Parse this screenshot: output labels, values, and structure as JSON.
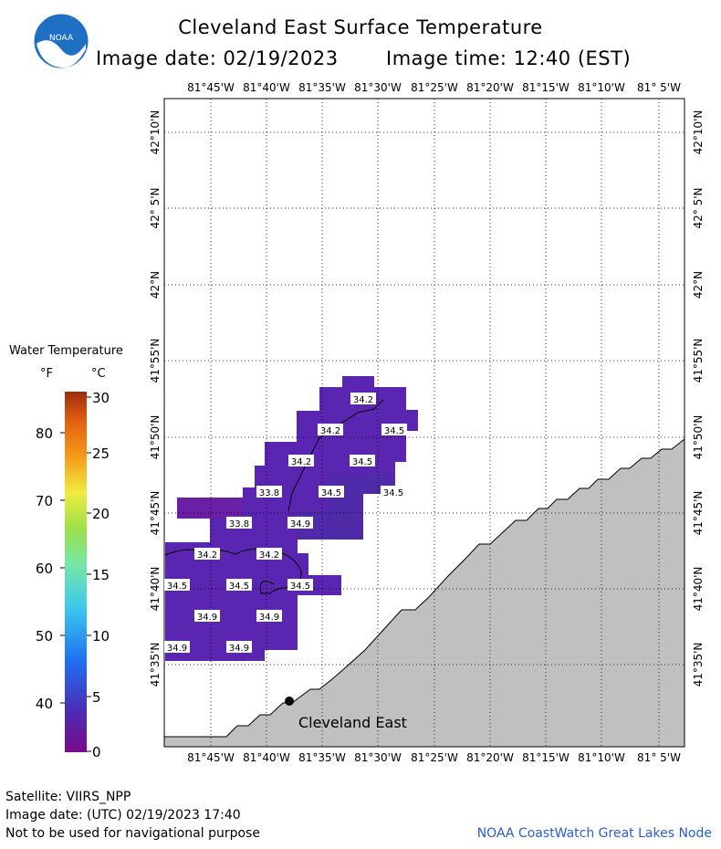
{
  "header": {
    "title": "Cleveland East Surface Temperature",
    "date_line": "Image date: 02/19/2023",
    "time_line": "Image time: 12:40 (EST)"
  },
  "logo": {
    "text": "NOAA",
    "icon": "noaa-logo-icon"
  },
  "map": {
    "lon_labels": [
      "81°45'W",
      "81°40'W",
      "81°35'W",
      "81°30'W",
      "81°25'W",
      "81°20'W",
      "81°15'W",
      "81°10'W",
      "81° 5'W"
    ],
    "lat_labels": [
      "42°10'N",
      "42° 5'N",
      "42°N",
      "41°55'N",
      "41°50'N",
      "41°45'N",
      "41°40'N",
      "41°35'N"
    ],
    "station_label": "Cleveland East",
    "land_color": "#c0c0c0",
    "water_color": "#5a25b0",
    "temperature_labels": [
      {
        "value": "34.2"
      },
      {
        "value": "34.2"
      },
      {
        "value": "34.5"
      },
      {
        "value": "34.2"
      },
      {
        "value": "34.5"
      },
      {
        "value": "33.8"
      },
      {
        "value": "34.5"
      },
      {
        "value": "34.5"
      },
      {
        "value": "33.8"
      },
      {
        "value": "34.9"
      },
      {
        "value": "34.2"
      },
      {
        "value": "34.2"
      },
      {
        "value": "34.5"
      },
      {
        "value": "34.5"
      },
      {
        "value": "34.5"
      },
      {
        "value": "34.9"
      },
      {
        "value": "34.9"
      },
      {
        "value": "34.9"
      },
      {
        "value": "34.9"
      }
    ]
  },
  "legend": {
    "title": "Water Temperature",
    "unit_f": "°F",
    "unit_c": "°C",
    "f_ticks": [
      "80",
      "70",
      "60",
      "50",
      "40"
    ],
    "c_ticks": [
      "30",
      "25",
      "20",
      "15",
      "10",
      "5",
      "0"
    ]
  },
  "footer": {
    "satellite": "Satellite: VIIRS_NPP",
    "utc_date": "Image date: (UTC) 02/19/2023  17:40",
    "disclaimer": "Not to be used for navigational purpose",
    "credit": "NOAA CoastWatch Great Lakes Node"
  }
}
